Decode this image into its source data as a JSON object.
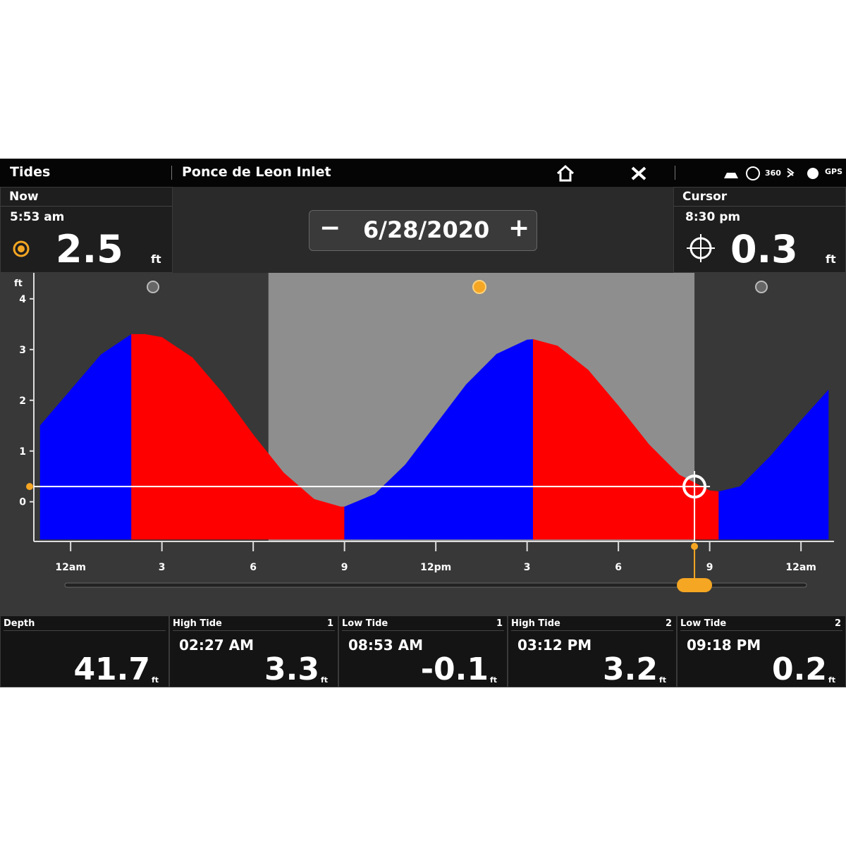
{
  "header": {
    "title": "Tides",
    "location": "Ponce de Leon Inlet",
    "icons": [
      "360",
      "GPS"
    ]
  },
  "now": {
    "label": "Now",
    "time": "5:53 am",
    "value": "2.5",
    "unit": "ft"
  },
  "date": {
    "minus": "−",
    "value": "6/28/2020",
    "plus": "+"
  },
  "cursor": {
    "label": "Cursor",
    "time": "8:30 pm",
    "value": "0.3",
    "unit": "ft"
  },
  "chart": {
    "type": "area",
    "y_label": "ft",
    "x": [
      -1,
      0,
      1,
      2,
      2.45,
      3,
      4,
      5,
      6,
      7,
      8,
      8.88,
      9,
      10,
      11,
      12,
      13,
      14,
      15,
      15.2,
      16,
      17,
      18,
      19,
      20,
      21,
      21.3,
      22,
      23,
      24,
      24.9
    ],
    "values": [
      1.5,
      2.2,
      2.9,
      3.3,
      3.3,
      3.24,
      2.84,
      2.14,
      1.32,
      0.57,
      0.05,
      -0.1,
      -0.1,
      0.15,
      0.73,
      1.52,
      2.31,
      2.91,
      3.19,
      3.2,
      3.07,
      2.6,
      1.89,
      1.13,
      0.53,
      0.22,
      0.2,
      0.3,
      0.9,
      1.6,
      2.2
    ],
    "xlim": [
      -1,
      24.9
    ],
    "ylim": [
      -0.74,
      4.47
    ],
    "xticks": [
      {
        "value": 0,
        "label": "12am"
      },
      3,
      6,
      9,
      {
        "value": 12,
        "label": "12pm"
      },
      {
        "value": 15,
        "label": "3"
      },
      {
        "value": 18,
        "label": "6"
      },
      {
        "value": 21,
        "label": "9"
      },
      {
        "value": 24,
        "label": "12am"
      }
    ],
    "yticks": [
      0,
      1,
      2,
      3,
      4
    ],
    "daylight": [
      6.5,
      20.5
    ],
    "cursor_x": 20.5,
    "cursor_y": 0.3,
    "rise_color": "#0000ff",
    "fall_color": "#ff0000"
  },
  "panels": [
    {
      "label": "Depth",
      "value": "41.7",
      "unit": "ft"
    },
    {
      "label": "High Tide",
      "index": "1",
      "time": "02:27 AM",
      "value": "3.3",
      "unit": "ft"
    },
    {
      "label": "Low Tide",
      "index": "1",
      "time": "08:53 AM",
      "value": "-0.1",
      "unit": "ft"
    },
    {
      "label": "High Tide",
      "index": "2",
      "time": "03:12 PM",
      "value": "3.2",
      "unit": "ft"
    },
    {
      "label": "Low Tide",
      "index": "2",
      "time": "09:18 PM",
      "value": "0.2",
      "unit": "ft"
    }
  ]
}
